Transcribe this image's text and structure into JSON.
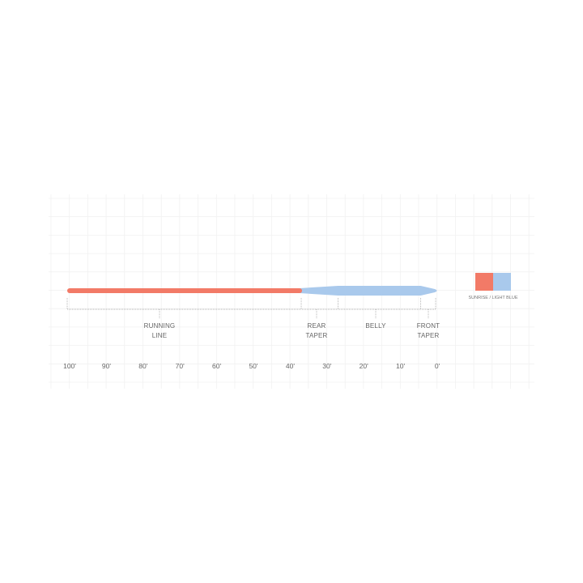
{
  "diagram": {
    "scale_ticks": [
      "100'",
      "90'",
      "80'",
      "70'",
      "60'",
      "50'",
      "40'",
      "30'",
      "20'",
      "10'",
      "0'"
    ],
    "sections": [
      {
        "label_line1": "RUNNING",
        "label_line2": "LINE",
        "start_ft": 100,
        "end_ft": 37
      },
      {
        "label_line1": "REAR",
        "label_line2": "TAPER",
        "start_ft": 37,
        "end_ft": 27
      },
      {
        "label_line1": "BELLY",
        "label_line2": "",
        "start_ft": 27,
        "end_ft": 4.5
      },
      {
        "label_line1": "FRONT",
        "label_line2": "TAPER",
        "start_ft": 4.5,
        "end_ft": 0
      }
    ],
    "colors": {
      "running_line": "#f27a67",
      "head": "#a9c9ec"
    },
    "legend": {
      "label": "SUNRISE / LIGHT BLUE",
      "swatches": [
        "#f27a67",
        "#a9c9ec"
      ]
    }
  }
}
